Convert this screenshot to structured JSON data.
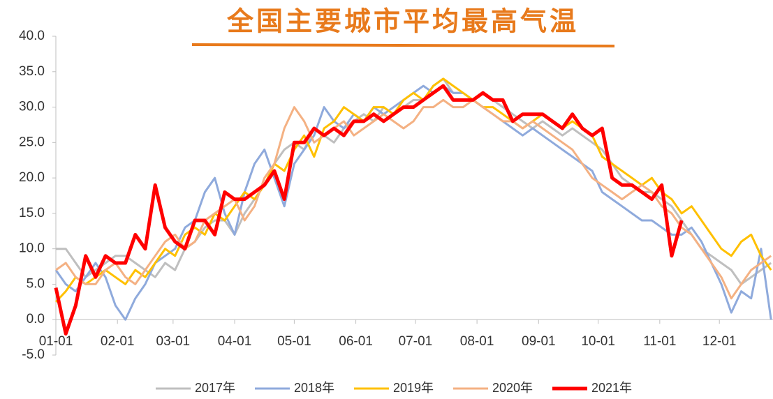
{
  "chart_data": {
    "type": "line",
    "title": "全国主要城市平均最高气温",
    "x": [
      0,
      5,
      10,
      15,
      20,
      25,
      30,
      35,
      40,
      45,
      50,
      55,
      60,
      65,
      70,
      75,
      80,
      85,
      90,
      95,
      100,
      105,
      110,
      115,
      120,
      125,
      130,
      135,
      140,
      145,
      150,
      155,
      160,
      165,
      170,
      175,
      180,
      185,
      190,
      195,
      200,
      205,
      210,
      215,
      220,
      225,
      230,
      235,
      240,
      245,
      250,
      255,
      260,
      265,
      270,
      275,
      280,
      285,
      290,
      295,
      300,
      305,
      310,
      315,
      320,
      325,
      330,
      335,
      340,
      345,
      350,
      355,
      360
    ],
    "xlim": [
      0,
      361
    ],
    "xticks": [
      {
        "value": 0,
        "label": "01-01"
      },
      {
        "value": 31,
        "label": "02-01"
      },
      {
        "value": 59,
        "label": "03-01"
      },
      {
        "value": 90,
        "label": "04-01"
      },
      {
        "value": 120,
        "label": "05-01"
      },
      {
        "value": 151,
        "label": "06-01"
      },
      {
        "value": 181,
        "label": "07-01"
      },
      {
        "value": 212,
        "label": "08-01"
      },
      {
        "value": 243,
        "label": "09-01"
      },
      {
        "value": 273,
        "label": "10-01"
      },
      {
        "value": 304,
        "label": "11-01"
      },
      {
        "value": 334,
        "label": "12-01"
      }
    ],
    "ylim": [
      -5,
      40
    ],
    "yticks": [
      {
        "value": -5,
        "label": "-5.0"
      },
      {
        "value": 0,
        "label": "0.0"
      },
      {
        "value": 5,
        "label": "5.0"
      },
      {
        "value": 10,
        "label": "10.0"
      },
      {
        "value": 15,
        "label": "15.0"
      },
      {
        "value": 20,
        "label": "20.0"
      },
      {
        "value": 25,
        "label": "25.0"
      },
      {
        "value": 30,
        "label": "30.0"
      },
      {
        "value": 35,
        "label": "35.0"
      },
      {
        "value": 40,
        "label": "40.0"
      }
    ],
    "grid": false,
    "legend": "bottom",
    "series": [
      {
        "name": "2017年",
        "color": "#bfbfbf",
        "width": 3,
        "values": [
          10,
          10,
          8,
          6,
          7,
          8,
          9,
          9,
          8,
          7,
          6,
          8,
          7,
          10,
          11,
          13,
          14,
          14,
          12,
          15,
          17,
          19,
          22,
          24,
          25,
          24,
          27,
          26,
          25,
          27,
          28,
          29,
          28,
          30,
          29,
          30,
          31,
          31,
          33,
          34,
          32,
          32,
          31,
          32,
          31,
          30,
          29,
          28,
          27,
          28,
          27,
          26,
          27,
          26,
          25,
          24,
          22,
          20,
          19,
          18,
          18,
          17,
          16,
          14,
          12,
          10,
          9,
          8,
          7,
          5,
          6,
          7,
          8
        ]
      },
      {
        "name": "2018年",
        "color": "#8faadc",
        "width": 3,
        "values": [
          7,
          5,
          4,
          6,
          8,
          6,
          2,
          0,
          3,
          5,
          8,
          9,
          10,
          13,
          14,
          18,
          20,
          15,
          12,
          18,
          22,
          24,
          20,
          16,
          22,
          24,
          26,
          30,
          28,
          27,
          29,
          28,
          30,
          29,
          30,
          31,
          32,
          33,
          32,
          33,
          32,
          32,
          31,
          30,
          29,
          28,
          27,
          26,
          27,
          26,
          25,
          24,
          23,
          22,
          21,
          18,
          17,
          16,
          15,
          14,
          14,
          13,
          12,
          12,
          13,
          11,
          8,
          5,
          1,
          4,
          3,
          10,
          0
        ]
      },
      {
        "name": "2019年",
        "color": "#ffc000",
        "width": 3,
        "values": [
          2.5,
          4,
          6,
          5,
          6,
          7,
          6,
          5,
          7,
          6,
          8,
          10,
          9,
          12,
          13,
          12,
          15,
          14,
          16,
          18,
          17,
          19,
          22,
          21,
          24,
          26,
          23,
          27,
          28,
          30,
          29,
          28,
          30,
          30,
          29,
          31,
          32,
          31,
          33,
          34,
          33,
          32,
          31,
          30,
          30,
          29,
          28,
          27,
          28,
          29,
          28,
          27,
          28,
          27,
          26,
          23,
          22,
          21,
          20,
          19,
          20,
          18,
          17,
          15,
          16,
          14,
          12,
          10,
          9,
          11,
          12,
          9,
          7
        ]
      },
      {
        "name": "2020年",
        "color": "#f4b183",
        "width": 3,
        "values": [
          7,
          8,
          6,
          5,
          5,
          7,
          8,
          6,
          5,
          7,
          9,
          11,
          12,
          10,
          11,
          14,
          15,
          16,
          17,
          14,
          16,
          20,
          22,
          27,
          30,
          28,
          25,
          26,
          27,
          28,
          26,
          27,
          28,
          29,
          28,
          27,
          28,
          30,
          30,
          31,
          30,
          30,
          31,
          30,
          29,
          28,
          28,
          27,
          28,
          27,
          26,
          25,
          24,
          22,
          20,
          19,
          18,
          17,
          18,
          19,
          18,
          16,
          15,
          13,
          12,
          10,
          8,
          6,
          3,
          5,
          7,
          8,
          9
        ]
      },
      {
        "name": "2021年",
        "color": "#ff0000",
        "width": 5,
        "values": [
          4.5,
          -2,
          2,
          9,
          6,
          9,
          8,
          8,
          12,
          10,
          19,
          13,
          11,
          10,
          14,
          14,
          12,
          18,
          17,
          17,
          18,
          19,
          21,
          17,
          25,
          25,
          27,
          26,
          27,
          26,
          28,
          28,
          29,
          28,
          29,
          30,
          30,
          31,
          32,
          33,
          31,
          31,
          31,
          32,
          31,
          31,
          28,
          29,
          29,
          29,
          28,
          27,
          29,
          27,
          26,
          27,
          20,
          19,
          19,
          18,
          17,
          19,
          9,
          14,
          null,
          null,
          null,
          null,
          null,
          null,
          null,
          null,
          null
        ]
      }
    ]
  }
}
